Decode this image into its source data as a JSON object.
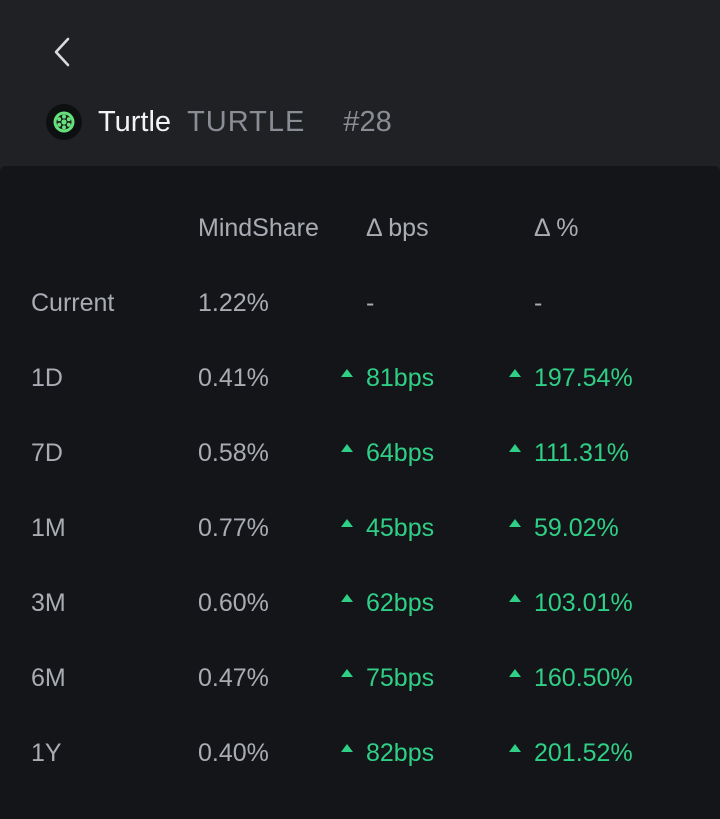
{
  "header": {
    "token_name": "Turtle",
    "token_symbol": "TURTLE",
    "token_rank": "#28"
  },
  "table": {
    "columns": [
      "MindShare",
      "Δ bps",
      "Δ %"
    ],
    "current": {
      "label": "Current",
      "mindshare": "1.22%",
      "bps": "-",
      "pct": "-"
    },
    "rows": [
      {
        "label": "1D",
        "mindshare": "0.41%",
        "bps": "81bps",
        "pct": "197.54%"
      },
      {
        "label": "7D",
        "mindshare": "0.58%",
        "bps": "64bps",
        "pct": "111.31%"
      },
      {
        "label": "1M",
        "mindshare": "0.77%",
        "bps": "45bps",
        "pct": "59.02%"
      },
      {
        "label": "3M",
        "mindshare": "0.60%",
        "bps": "62bps",
        "pct": "103.01%"
      },
      {
        "label": "6M",
        "mindshare": "0.47%",
        "bps": "75bps",
        "pct": "160.50%"
      },
      {
        "label": "1Y",
        "mindshare": "0.40%",
        "bps": "82bps",
        "pct": "201.52%"
      }
    ]
  },
  "colors": {
    "positive": "#2fcf86",
    "header_bg": "#1f2125",
    "panel_bg": "#141518"
  },
  "icons": {
    "back": "chevron-left-icon",
    "token": "turtle-logo-icon",
    "trend": "triangle-up-icon"
  }
}
